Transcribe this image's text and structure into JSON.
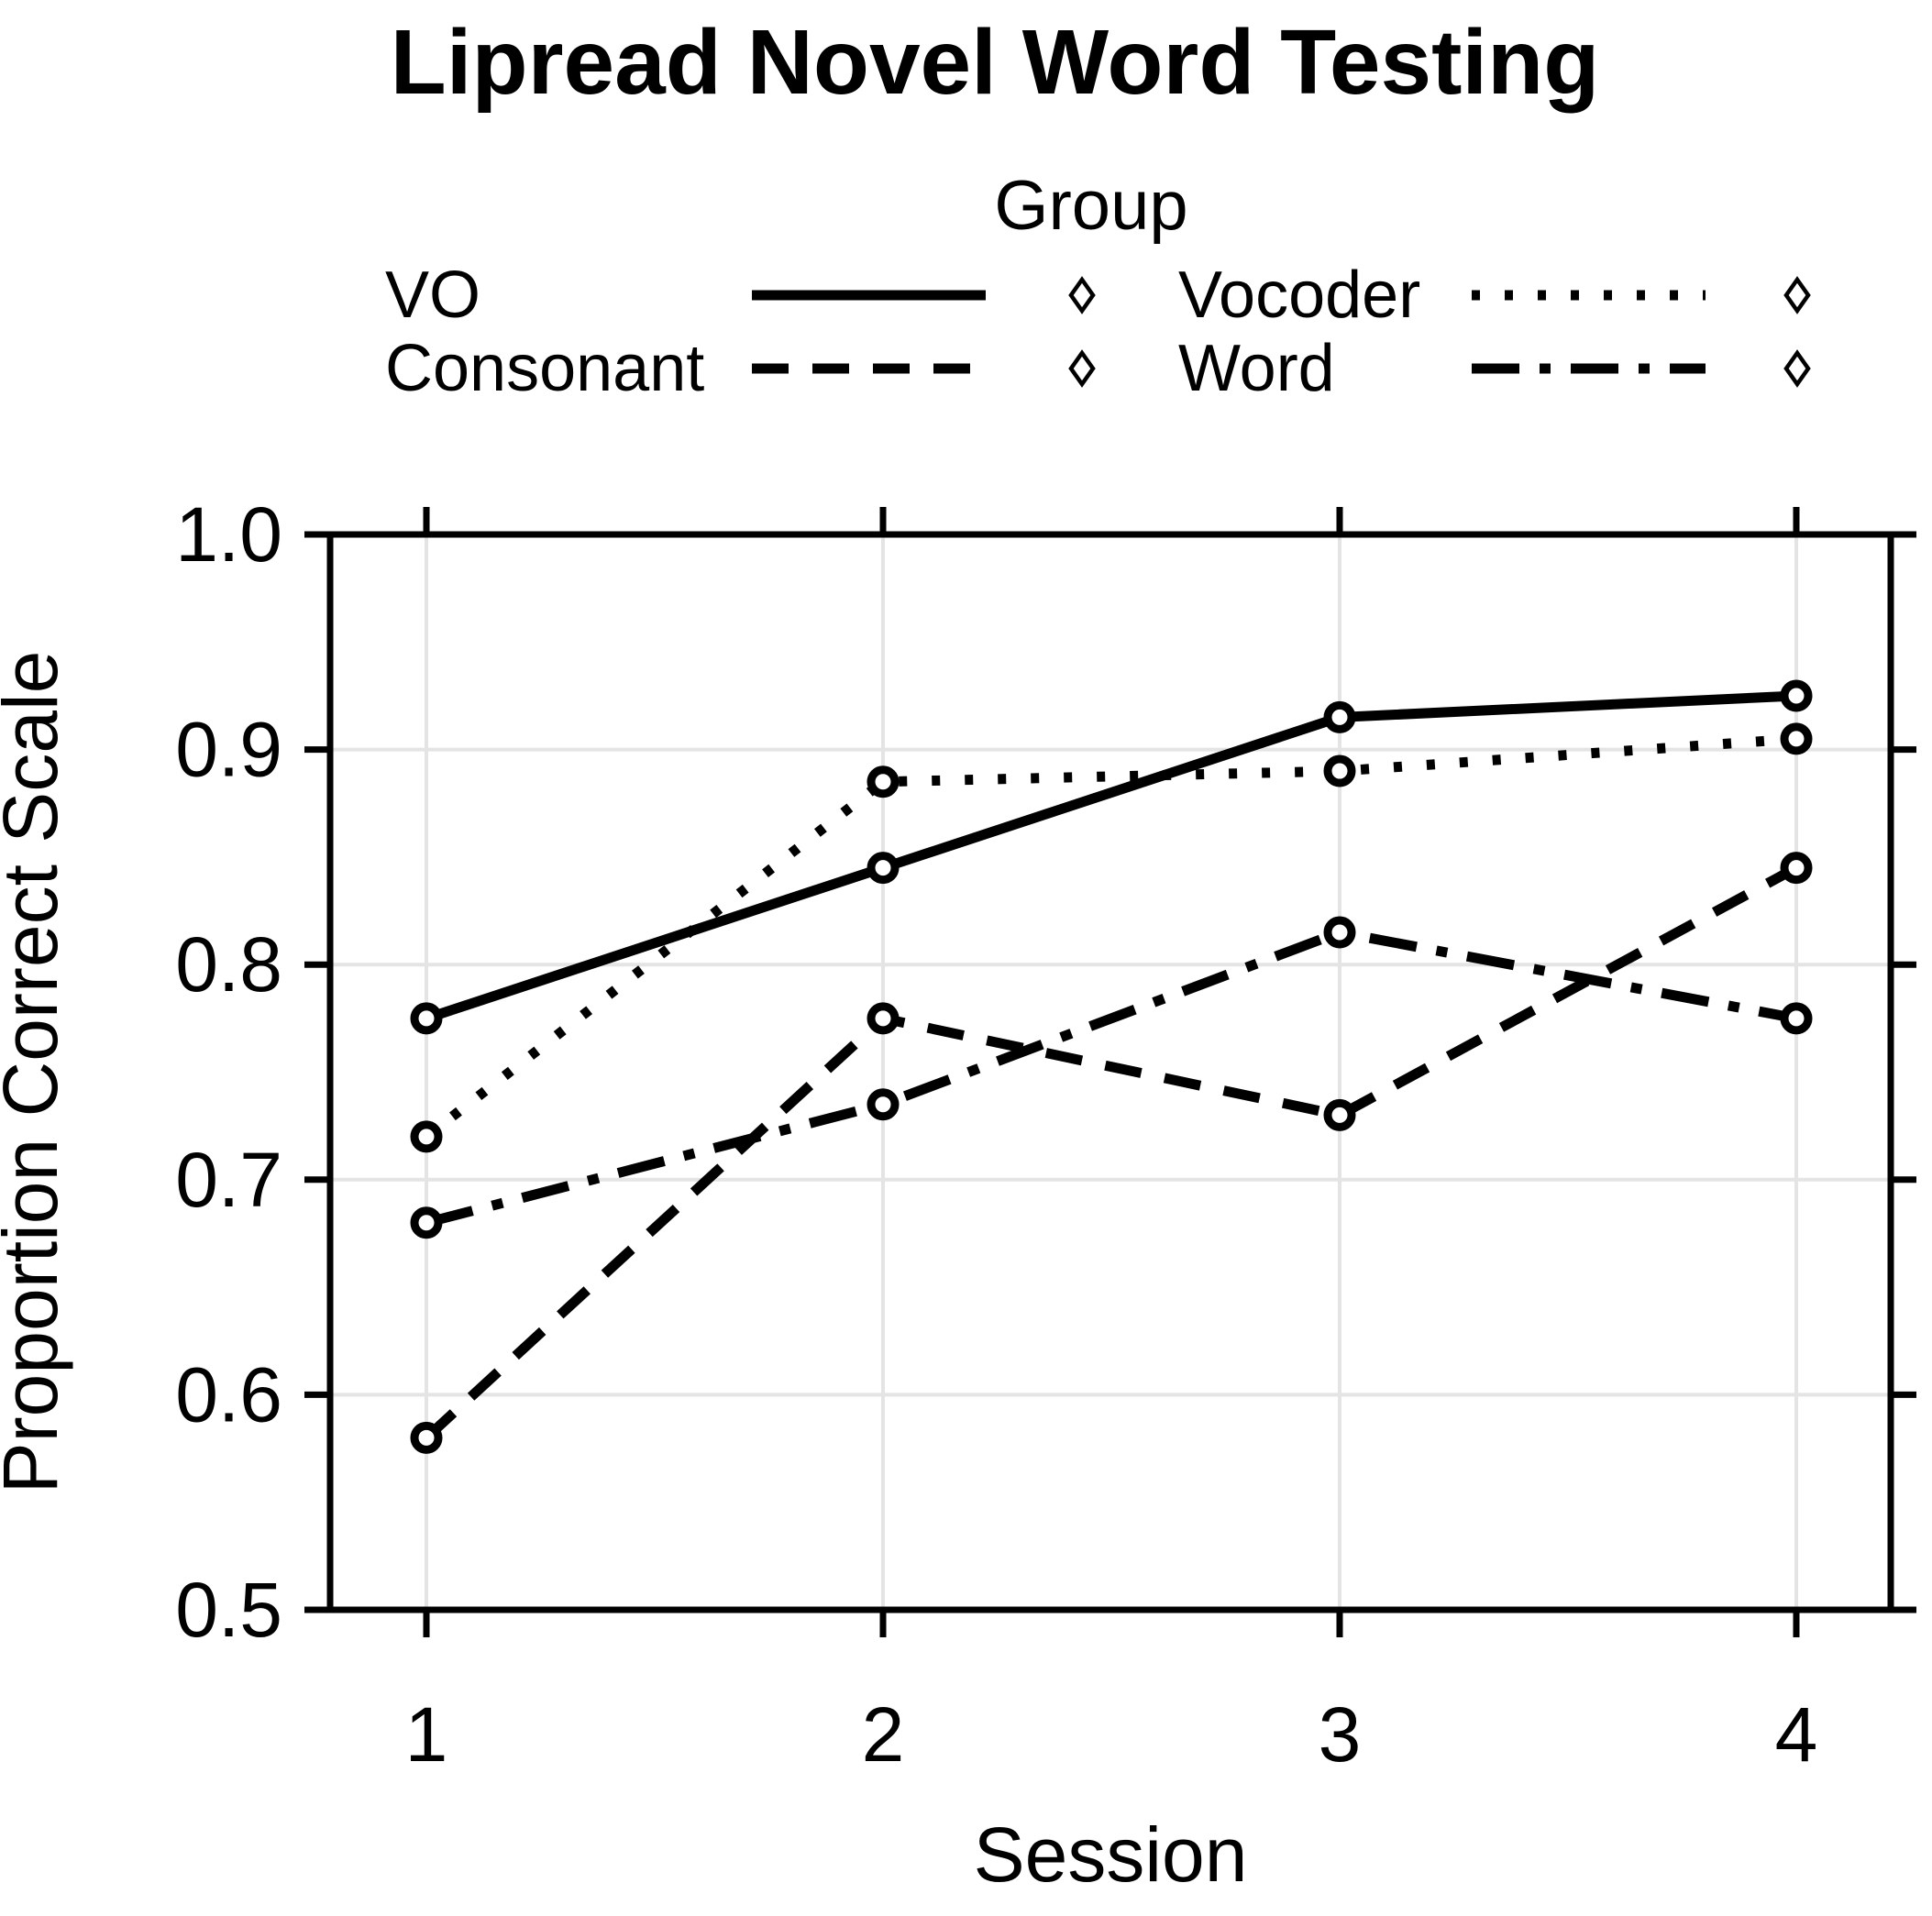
{
  "chart_data": {
    "type": "line",
    "title": "Lipread Novel Word Testing",
    "xlabel": "Session",
    "ylabel": "Proportion Correct Scale",
    "x": [
      1,
      2,
      3,
      4
    ],
    "x_tick_labels": [
      "1",
      "2",
      "3",
      "4"
    ],
    "ylim": [
      0.5,
      1.0
    ],
    "y_ticks": [
      1.0,
      0.9,
      0.8,
      0.7,
      0.6,
      0.5
    ],
    "y_tick_labels": [
      "1.0",
      "0.9",
      "0.8",
      "0.7",
      "0.6",
      "0.5"
    ],
    "grid": true,
    "plot_marker": "open-circle",
    "line_color": "#000000",
    "grid_color": "#e4e4e4",
    "legend": {
      "title": "Group",
      "position": "top",
      "marker": "open-diamond",
      "columns": 2
    },
    "series": [
      {
        "name": "VO",
        "style": "solid",
        "values": [
          0.775,
          0.845,
          0.915,
          0.925
        ]
      },
      {
        "name": "Vocoder",
        "style": "dotted",
        "values": [
          0.72,
          0.885,
          0.89,
          0.905
        ]
      },
      {
        "name": "Consonant",
        "style": "dashed",
        "values": [
          0.58,
          0.775,
          0.73,
          0.845
        ]
      },
      {
        "name": "Word",
        "style": "dashdot",
        "values": [
          0.68,
          0.735,
          0.815,
          0.775
        ]
      }
    ]
  }
}
